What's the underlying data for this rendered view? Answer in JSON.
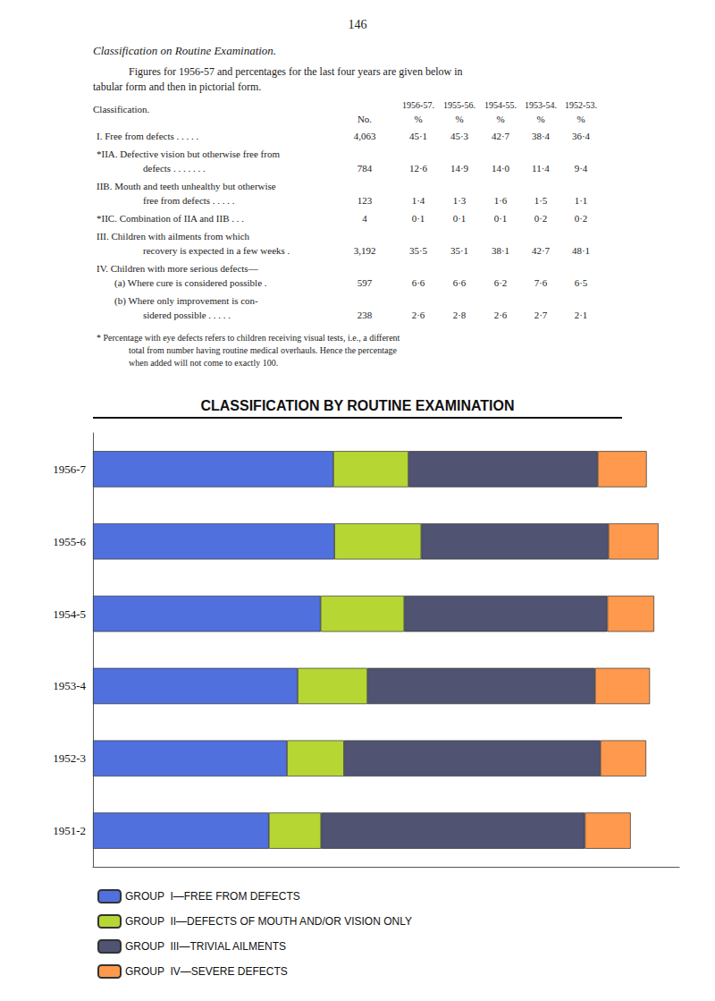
{
  "chart_data": {
    "type": "bar",
    "orientation": "horizontal",
    "stacked": true,
    "title": "CLASSIFICATION BY ROUTINE EXAMINATION",
    "page_number": "146",
    "heading": "Classification on Routine Examination.",
    "subtitle": "Figures for 1956-57 and percentages for the last four years are given below in\ntabular form and then in pictorial form.",
    "table": {
      "headers": [
        "Classification.",
        "No.",
        "1956-57.\n%",
        "1955-56.\n%",
        "1954-55.\n%",
        "1953-54.\n%",
        "1952-53.\n%"
      ],
      "rows": [
        [
          "I. Free from defects . . . . .",
          "4,063",
          "45·1",
          "45·3",
          "42·7",
          "38·4",
          "36·4"
        ],
        [
          "*IIA. Defective vision but otherwise free from\ndefects . . . . . . .",
          "784",
          "12·6",
          "14·9",
          "14·0",
          "11·4",
          "9·4"
        ],
        [
          "IIB. Mouth and teeth unhealthy but otherwise\nfree from defects . . . . .",
          "123",
          "1·4",
          "1·3",
          "1·6",
          "1·5",
          "1·1"
        ],
        [
          "*IIC. Combination of IIA and IIB . . .",
          "4",
          "0·1",
          "0·1",
          "0·1",
          "0·2",
          "0·2"
        ],
        [
          "III. Children with ailments from which\nrecovery is expected in a few weeks .",
          "3,192",
          "35·5",
          "35·1",
          "38·1",
          "42·7",
          "48·1"
        ],
        [
          "IV. Children with more serious defects—\n(a) Where cure is considered possible .",
          "597",
          "6·6",
          "6·6",
          "6·2",
          "7·6",
          "6·5"
        ],
        [
          "(b) Where only improvement is con-\nsidered possible . . . . .",
          "238",
          "2·6",
          "2·8",
          "2·6",
          "2·7",
          "2·1"
        ]
      ]
    },
    "footnote": "* Percentage with eye defects refers to children receiving visual tests, i.e., a different\ntotal from number having routine medical overhauls. Hence the percentage\nwhen added will not come to exactly 100.",
    "categories": [
      "1951-2",
      "1952-3",
      "1953-4",
      "1954-5",
      "1955-6",
      "1956-7"
    ],
    "series": [
      {
        "name": "GROUP  I—FREE FROM DEFECTS",
        "values": [
          33.0,
          36.4,
          38.4,
          42.7,
          45.3,
          45.1
        ]
      },
      {
        "name": "GROUP  II—DEFECTS OF MOUTH AND/OR VISION ONLY",
        "values": [
          9.8,
          10.7,
          13.1,
          15.7,
          16.3,
          14.1
        ]
      },
      {
        "name": "GROUP  III—TRIVIAL AILMENTS",
        "values": [
          49.5,
          48.1,
          42.7,
          38.1,
          35.1,
          35.5
        ]
      },
      {
        "name": "GROUP  IV—SEVERE DEFECTS",
        "values": [
          8.6,
          8.6,
          10.3,
          8.8,
          9.4,
          9.2
        ]
      }
    ],
    "xlim": [
      0,
      110
    ],
    "tick_labels": "y",
    "grid": false,
    "legend": "bottom"
  }
}
